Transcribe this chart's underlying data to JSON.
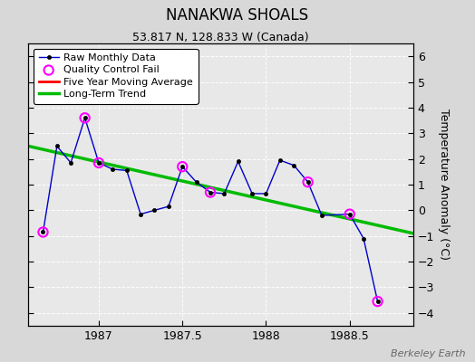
{
  "title": "NANAKWA SHOALS",
  "subtitle": "53.817 N, 128.833 W (Canada)",
  "ylabel": "Temperature Anomaly (°C)",
  "watermark": "Berkeley Earth",
  "xlim": [
    1986.58,
    1988.88
  ],
  "ylim": [
    -4.5,
    6.5
  ],
  "yticks": [
    -4,
    -3,
    -2,
    -1,
    0,
    1,
    2,
    3,
    4,
    5,
    6
  ],
  "xticks": [
    1987.0,
    1987.5,
    1988.0,
    1988.5
  ],
  "xticklabels": [
    "1987",
    "1987.5",
    "1988",
    "1988.5"
  ],
  "bg_color": "#d8d8d8",
  "plot_bg_color": "#e8e8e8",
  "raw_x": [
    1986.667,
    1986.75,
    1986.833,
    1986.917,
    1987.0,
    1987.083,
    1987.167,
    1987.25,
    1987.333,
    1987.417,
    1987.5,
    1987.583,
    1987.667,
    1987.75,
    1987.833,
    1987.917,
    1988.0,
    1988.083,
    1988.167,
    1988.25,
    1988.333,
    1988.5,
    1988.583,
    1988.667
  ],
  "raw_y": [
    -0.85,
    2.5,
    1.85,
    3.6,
    1.85,
    1.6,
    1.55,
    -0.15,
    0.0,
    0.15,
    1.7,
    1.1,
    0.7,
    0.65,
    1.9,
    0.65,
    0.65,
    1.95,
    1.75,
    1.1,
    -0.2,
    -0.15,
    -1.1,
    -3.55
  ],
  "qc_fail_x": [
    1986.667,
    1986.917,
    1987.0,
    1987.5,
    1987.667,
    1988.25,
    1988.5,
    1988.667
  ],
  "qc_fail_y": [
    -0.85,
    3.6,
    1.85,
    1.7,
    0.7,
    1.1,
    -0.15,
    -3.55
  ],
  "trend_x": [
    1986.58,
    1988.88
  ],
  "trend_y": [
    2.5,
    -0.9
  ],
  "raw_color": "#0000cc",
  "qc_color": "#ff00ff",
  "trend_color": "#00bb00",
  "moving_avg_color": "#ff0000",
  "title_fontsize": 12,
  "subtitle_fontsize": 9,
  "tick_fontsize": 9,
  "ylabel_fontsize": 9
}
